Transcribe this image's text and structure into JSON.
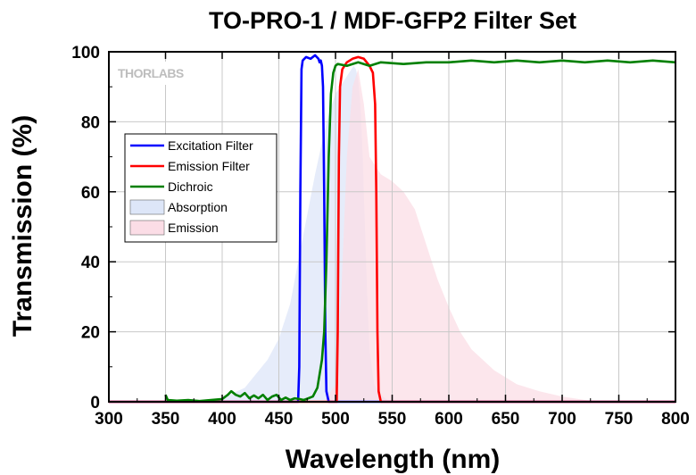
{
  "chart_data": {
    "type": "line",
    "title": "TO-PRO-1 / MDF-GFP2 Filter Set",
    "xlabel": "Wavelength (nm)",
    "ylabel": "Transmission (%)",
    "xlim": [
      300,
      800
    ],
    "ylim": [
      0,
      100
    ],
    "x_ticks": [
      "300",
      "350",
      "400",
      "450",
      "500",
      "550",
      "600",
      "650",
      "700",
      "750",
      "800"
    ],
    "y_ticks": [
      "0",
      "20",
      "40",
      "60",
      "80",
      "100"
    ],
    "grid": true,
    "legend_position": "upper-left",
    "logo": "THORLABS",
    "series": [
      {
        "name": "Excitation Filter",
        "kind": "line",
        "color": "#0000ff",
        "x": [
          300,
          467,
          468,
          469,
          470,
          471,
          474,
          478,
          482,
          485,
          486,
          487,
          488,
          489,
          490,
          491,
          492,
          494,
          800
        ],
        "y": [
          0,
          0,
          10,
          60,
          95,
          97.5,
          98.5,
          98,
          99,
          98,
          97,
          97.5,
          96,
          90,
          60,
          20,
          3,
          0,
          0
        ]
      },
      {
        "name": "Emission Filter",
        "kind": "line",
        "color": "#ff0000",
        "x": [
          300,
          501,
          502,
          503,
          504,
          506,
          510,
          515,
          520,
          525,
          530,
          533,
          535,
          536,
          537,
          538,
          540,
          800
        ],
        "y": [
          0,
          0,
          20,
          70,
          90,
          95,
          97,
          98,
          98.5,
          98,
          96,
          94,
          85,
          60,
          20,
          3,
          0,
          0
        ]
      },
      {
        "name": "Dichroic",
        "kind": "line",
        "color": "#008000",
        "x": [
          350,
          352,
          360,
          370,
          380,
          390,
          400,
          405,
          408,
          412,
          416,
          420,
          424,
          428,
          432,
          436,
          440,
          444,
          448,
          452,
          456,
          460,
          464,
          468,
          472,
          476,
          480,
          484,
          488,
          490,
          492,
          494,
          496,
          498,
          500,
          502,
          510,
          520,
          530,
          540,
          560,
          580,
          600,
          620,
          640,
          660,
          680,
          700,
          720,
          740,
          760,
          780,
          800
        ],
        "y": [
          2,
          0.5,
          0.3,
          0.5,
          0.2,
          0.5,
          0.8,
          2,
          3,
          2,
          1.5,
          2.5,
          1,
          1.8,
          1,
          2,
          0.5,
          1.5,
          2,
          0.5,
          1.2,
          0.5,
          1,
          0.8,
          0.5,
          1,
          1.5,
          4,
          12,
          20,
          40,
          70,
          88,
          94,
          96,
          96.5,
          96,
          97,
          96,
          97,
          96.5,
          97,
          97,
          97.5,
          97,
          97.5,
          97,
          97.5,
          97,
          97.5,
          97,
          97.5,
          97
        ]
      },
      {
        "name": "Absorption",
        "kind": "area",
        "color": "#dde6f8",
        "x": [
          300,
          340,
          380,
          400,
          420,
          440,
          450,
          460,
          470,
          476,
          482,
          488,
          494,
          500,
          504,
          508,
          512,
          516,
          518,
          520,
          522,
          524,
          526,
          528,
          530,
          534,
          540,
          546,
          560
        ],
        "y": [
          0,
          0,
          0.5,
          1,
          4,
          12,
          18,
          28,
          45,
          55,
          65,
          74,
          82,
          88,
          90,
          92,
          94,
          96,
          95,
          92,
          85,
          70,
          50,
          30,
          15,
          5,
          2,
          0.5,
          0
        ]
      },
      {
        "name": "Emission",
        "kind": "area",
        "color": "#fbdde6",
        "x": [
          490,
          500,
          505,
          510,
          515,
          520,
          525,
          530,
          540,
          550,
          560,
          570,
          580,
          590,
          600,
          610,
          620,
          640,
          660,
          680,
          700,
          720,
          740,
          760
        ],
        "y": [
          0,
          5,
          30,
          70,
          90,
          95,
          85,
          70,
          65,
          63,
          60,
          55,
          45,
          35,
          27,
          20,
          15,
          9,
          5,
          3,
          1.5,
          0.5,
          0,
          0
        ]
      }
    ]
  }
}
